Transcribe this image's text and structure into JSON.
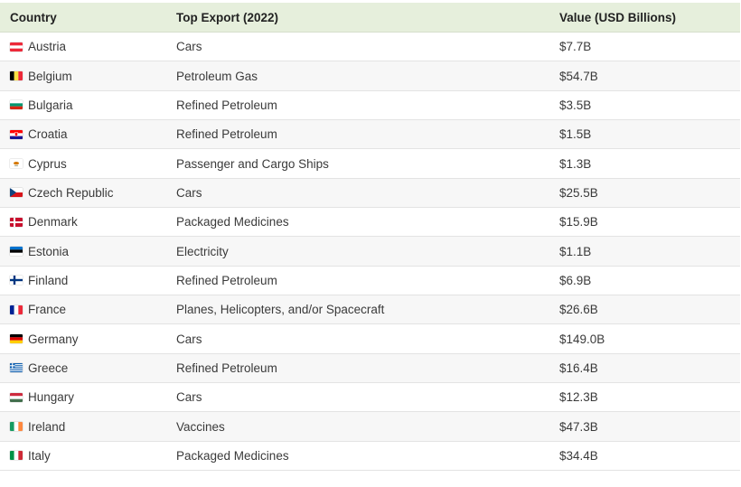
{
  "table": {
    "headers": [
      "Country",
      "Top Export (2022)",
      "Value (USD Billions)"
    ],
    "rows": [
      {
        "flag": "austria-flag-icon",
        "country": "Austria",
        "export": "Cars",
        "value": "$7.7B"
      },
      {
        "flag": "belgium-flag-icon",
        "country": "Belgium",
        "export": "Petroleum Gas",
        "value": "$54.7B"
      },
      {
        "flag": "bulgaria-flag-icon",
        "country": "Bulgaria",
        "export": "Refined Petroleum",
        "value": "$3.5B"
      },
      {
        "flag": "croatia-flag-icon",
        "country": "Croatia",
        "export": "Refined Petroleum",
        "value": "$1.5B"
      },
      {
        "flag": "cyprus-flag-icon",
        "country": "Cyprus",
        "export": "Passenger and Cargo Ships",
        "value": "$1.3B"
      },
      {
        "flag": "czech-republic-flag-icon",
        "country": "Czech Republic",
        "export": "Cars",
        "value": "$25.5B"
      },
      {
        "flag": "denmark-flag-icon",
        "country": "Denmark",
        "export": "Packaged Medicines",
        "value": "$15.9B"
      },
      {
        "flag": "estonia-flag-icon",
        "country": "Estonia",
        "export": "Electricity",
        "value": "$1.1B"
      },
      {
        "flag": "finland-flag-icon",
        "country": "Finland",
        "export": "Refined Petroleum",
        "value": "$6.9B"
      },
      {
        "flag": "france-flag-icon",
        "country": "France",
        "export": "Planes, Helicopters, and/or Spacecraft",
        "value": "$26.6B"
      },
      {
        "flag": "germany-flag-icon",
        "country": "Germany",
        "export": "Cars",
        "value": "$149.0B"
      },
      {
        "flag": "greece-flag-icon",
        "country": "Greece",
        "export": "Refined Petroleum",
        "value": "$16.4B"
      },
      {
        "flag": "hungary-flag-icon",
        "country": "Hungary",
        "export": "Cars",
        "value": "$12.3B"
      },
      {
        "flag": "ireland-flag-icon",
        "country": "Ireland",
        "export": "Vaccines",
        "value": "$47.3B"
      },
      {
        "flag": "italy-flag-icon",
        "country": "Italy",
        "export": "Packaged Medicines",
        "value": "$34.4B"
      }
    ]
  },
  "colors": {
    "header_background": "#e6efdc",
    "row_alt_background": "#f7f7f7"
  }
}
